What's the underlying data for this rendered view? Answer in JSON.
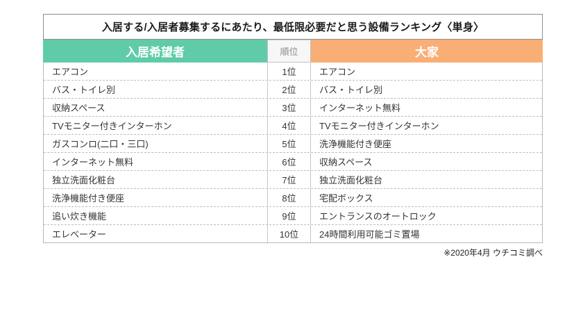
{
  "chart_data": {
    "type": "table",
    "title": "入居する/入居者募集するにあたり、最低限必要だと思う設備ランキング〈単身〉",
    "columns": [
      "入居希望者",
      "順位",
      "大家"
    ],
    "rows": [
      [
        "エアコン",
        "1位",
        "エアコン"
      ],
      [
        "バス・トイレ別",
        "2位",
        "バス・トイレ別"
      ],
      [
        "収納スペース",
        "3位",
        "インターネット無料"
      ],
      [
        "TVモニター付きインターホン",
        "4位",
        "TVモニター付きインターホン"
      ],
      [
        "ガスコンロ(二口・三口)",
        "5位",
        "洗浄機能付き便座"
      ],
      [
        "インターネット無料",
        "6位",
        "収納スペース"
      ],
      [
        "独立洗面化粧台",
        "7位",
        "独立洗面化粧台"
      ],
      [
        "洗浄機能付き便座",
        "8位",
        "宅配ボックス"
      ],
      [
        "追い炊き機能",
        "9位",
        "エントランスのオートロック"
      ],
      [
        "エレベーター",
        "10位",
        "24時間利用可能ゴミ置場"
      ]
    ],
    "source_note": "※2020年4月 ウチコミ調べ",
    "layout": "three-column ranking table, rank column centered between tenant and landlord lists",
    "colors": {
      "tenant_header_bg": "#5fcba8",
      "landlord_header_bg": "#f9ae76",
      "rank_header_bg": "#f7f7f7",
      "header_text": "#ffffff",
      "rank_header_text": "#8a8a8a",
      "body_text": "#333333",
      "dashed_separator": "#bdbdbd",
      "outer_border": "#b8b8b8",
      "title_border": "#8e8e8e"
    }
  }
}
